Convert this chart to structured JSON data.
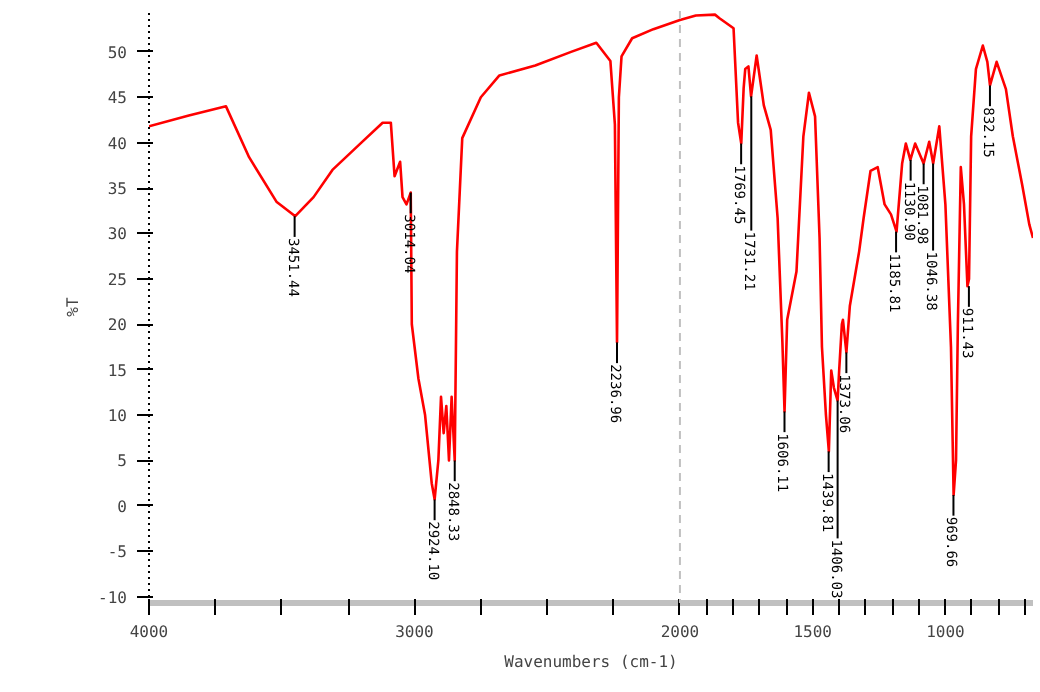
{
  "chart_data": {
    "type": "line",
    "xlabel": "Wavenumbers (cm-1)",
    "ylabel": "%T",
    "x": [
      4000,
      3850,
      3710,
      3623,
      3520,
      3449,
      3380,
      3309,
      3200,
      3120,
      3089,
      3075,
      3054,
      3045,
      3030,
      3014.04,
      3010,
      2985,
      2960,
      2935,
      2924,
      2910,
      2900,
      2890,
      2880,
      2870,
      2860,
      2848.33,
      2840,
      2820,
      2750,
      2680,
      2545,
      2410,
      2315,
      2262,
      2245,
      2237,
      2230,
      2220,
      2180,
      2100,
      2000,
      1940,
      1868,
      1851,
      1798,
      1781,
      1769,
      1760,
      1754,
      1742,
      1732,
      1711,
      1684,
      1658,
      1632,
      1614,
      1606,
      1596,
      1561,
      1535,
      1514,
      1491,
      1474,
      1465,
      1450,
      1439,
      1430,
      1420,
      1406,
      1400,
      1390,
      1386,
      1373,
      1360,
      1325,
      1308,
      1282,
      1255,
      1229,
      1205,
      1184,
      1163,
      1149,
      1132,
      1114,
      1082,
      1061,
      1046,
      1023,
      1000,
      979,
      969,
      960,
      953,
      942,
      930,
      917,
      911,
      903,
      885,
      859,
      842,
      832,
      807,
      772,
      746,
      711,
      684,
      670
    ],
    "values": [
      41.8,
      43,
      44,
      38.4,
      33.5,
      31.9,
      34,
      37,
      40,
      42.2,
      42.2,
      36.3,
      37.9,
      34,
      33.2,
      34.5,
      20,
      14,
      10,
      2.5,
      0.7,
      5,
      12,
      8,
      11,
      5,
      12,
      5,
      28,
      40.5,
      45,
      47.4,
      48.5,
      50,
      51,
      49,
      42,
      18,
      45,
      49.5,
      51.5,
      52.5,
      53.5,
      54,
      54.1,
      53.7,
      52.6,
      42.2,
      39.9,
      46,
      48.1,
      48.4,
      45.1,
      49.6,
      44.1,
      41.4,
      31.7,
      18,
      10.4,
      20.5,
      25.8,
      40.7,
      45.5,
      42.9,
      29.5,
      17.5,
      10,
      6,
      14.9,
      13,
      11.6,
      15,
      20,
      20.5,
      16.9,
      22,
      28,
      31.7,
      36.9,
      37.3,
      33.2,
      32.1,
      30.2,
      37.7,
      39.9,
      38.1,
      39.9,
      37.7,
      40.1,
      37.7,
      41.8,
      33.2,
      17.5,
      1.2,
      5,
      20,
      37.3,
      33.2,
      24.2,
      25,
      40.7,
      48.1,
      50.7,
      48.9,
      46.3,
      48.9,
      45.9,
      40.7,
      35.4,
      31,
      29.5
    ],
    "color": "#ff0000",
    "xlim": [
      4000,
      670
    ],
    "ylim": [
      -10.7,
      54.5
    ],
    "xticks": [
      4000,
      {
        "value": 3750,
        "label": null
      },
      {
        "value": 3500,
        "label": null
      },
      {
        "value": 3250,
        "label": null
      },
      3000,
      {
        "value": 2750,
        "label": null
      },
      {
        "value": 2500,
        "label": null
      },
      {
        "value": 2250,
        "label": null
      },
      2000,
      {
        "value": 1900,
        "label": null
      },
      {
        "value": 1800,
        "label": null
      },
      {
        "value": 1700,
        "label": null
      },
      {
        "value": 1600,
        "label": null
      },
      1500,
      {
        "value": 1400,
        "label": null
      },
      {
        "value": 1300,
        "label": null
      },
      {
        "value": 1200,
        "label": null
      },
      {
        "value": 1100,
        "label": null
      },
      1000,
      {
        "value": 900,
        "label": null
      },
      {
        "value": 800,
        "label": null
      },
      {
        "value": 700,
        "label": null
      }
    ],
    "yticks": [
      -10,
      -5,
      0,
      5,
      10,
      15,
      20,
      25,
      30,
      35,
      40,
      45,
      50
    ],
    "ref_lines": [
      {
        "axis": "x",
        "value": 2000,
        "color": "#c0c0c0",
        "line_style": "dashed"
      }
    ],
    "annotations": [
      {
        "text": "3451.44",
        "x": 3451.44,
        "y": 31.9
      },
      {
        "text": "3014.04",
        "x": 3014.04,
        "y": 34.5
      },
      {
        "text": "2924.10",
        "x": 2924.1,
        "y": 0.7
      },
      {
        "text": "2848.33",
        "x": 2848.33,
        "y": 5
      },
      {
        "text": "2236.96",
        "x": 2236.96,
        "y": 18
      },
      {
        "text": "1769.45",
        "x": 1769.45,
        "y": 39.9
      },
      {
        "text": "1731.21",
        "x": 1731.21,
        "y": 45.1
      },
      {
        "text": "1606.11",
        "x": 1606.11,
        "y": 10.4
      },
      {
        "text": "1439.81",
        "x": 1439.81,
        "y": 6
      },
      {
        "text": "1406.03",
        "x": 1406.03,
        "y": 11.6
      },
      {
        "text": "1373.06",
        "x": 1373.06,
        "y": 16.9
      },
      {
        "text": "1185.81",
        "x": 1185.81,
        "y": 30.2
      },
      {
        "text": "1130.90",
        "x": 1130.9,
        "y": 38.1
      },
      {
        "text": "1081.98",
        "x": 1081.98,
        "y": 37.7
      },
      {
        "text": "1046.38",
        "x": 1046.38,
        "y": 37.7
      },
      {
        "text": "969.66",
        "x": 969.66,
        "y": 1.2
      },
      {
        "text": "911.43",
        "x": 911.43,
        "y": 24.2
      },
      {
        "text": "832.15",
        "x": 832.15,
        "y": 46.3
      }
    ]
  }
}
